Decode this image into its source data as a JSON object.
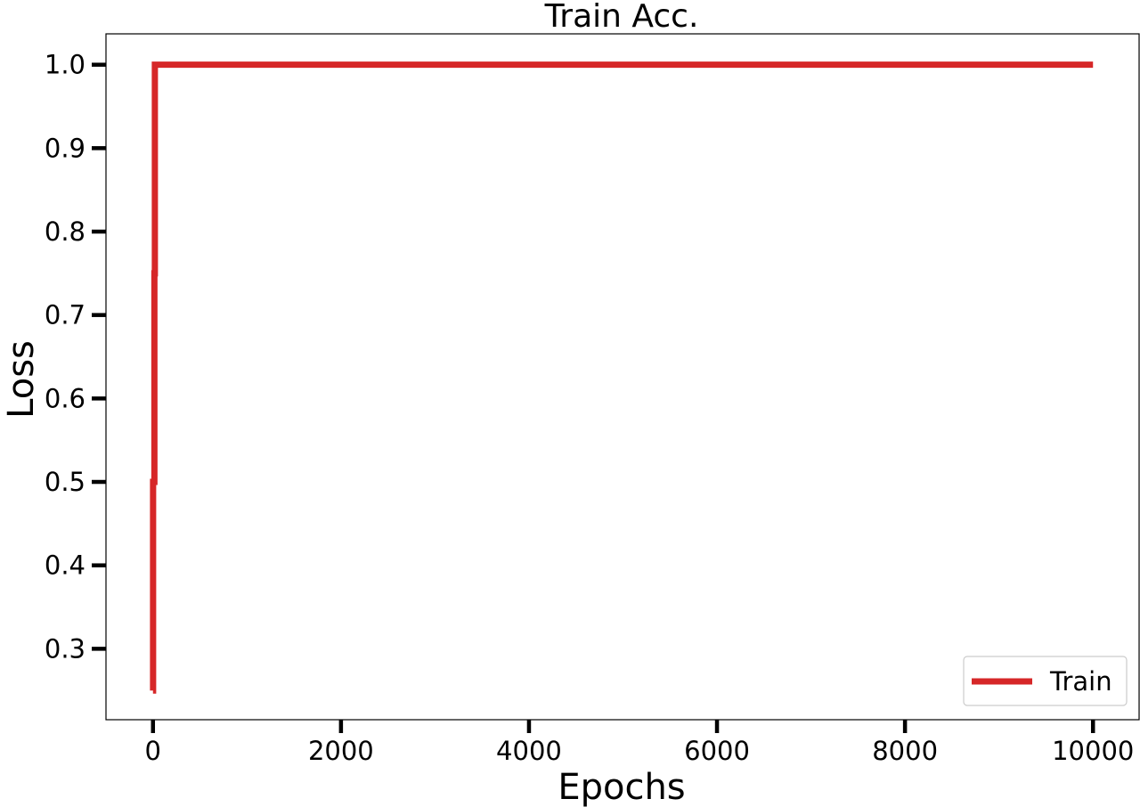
{
  "chart_data": {
    "type": "line",
    "title": "Train Acc.",
    "xlabel": "Epochs",
    "ylabel": "Loss",
    "xlim": [
      -500,
      10500
    ],
    "ylim": [
      0.215,
      1.037
    ],
    "xticks": [
      0,
      2000,
      4000,
      6000,
      8000,
      10000
    ],
    "xtick_labels": [
      "0",
      "2000",
      "4000",
      "6000",
      "8000",
      "10000"
    ],
    "yticks": [
      0.3,
      0.4,
      0.5,
      0.6,
      0.7,
      0.8,
      0.9,
      1.0
    ],
    "ytick_labels": [
      "0.3",
      "0.4",
      "0.5",
      "0.6",
      "0.7",
      "0.8",
      "0.9",
      "1.0"
    ],
    "grid": false,
    "legend": {
      "position": "bottom-right",
      "entries": [
        "Train"
      ]
    },
    "series": [
      {
        "name": "Train",
        "color": "#d62728",
        "x": [
          0,
          1,
          1,
          15,
          15,
          20,
          20,
          30,
          10000
        ],
        "y": [
          0.25,
          0.25,
          0.5,
          0.5,
          0.75,
          0.75,
          1.0,
          1.0,
          1.0
        ]
      }
    ]
  }
}
